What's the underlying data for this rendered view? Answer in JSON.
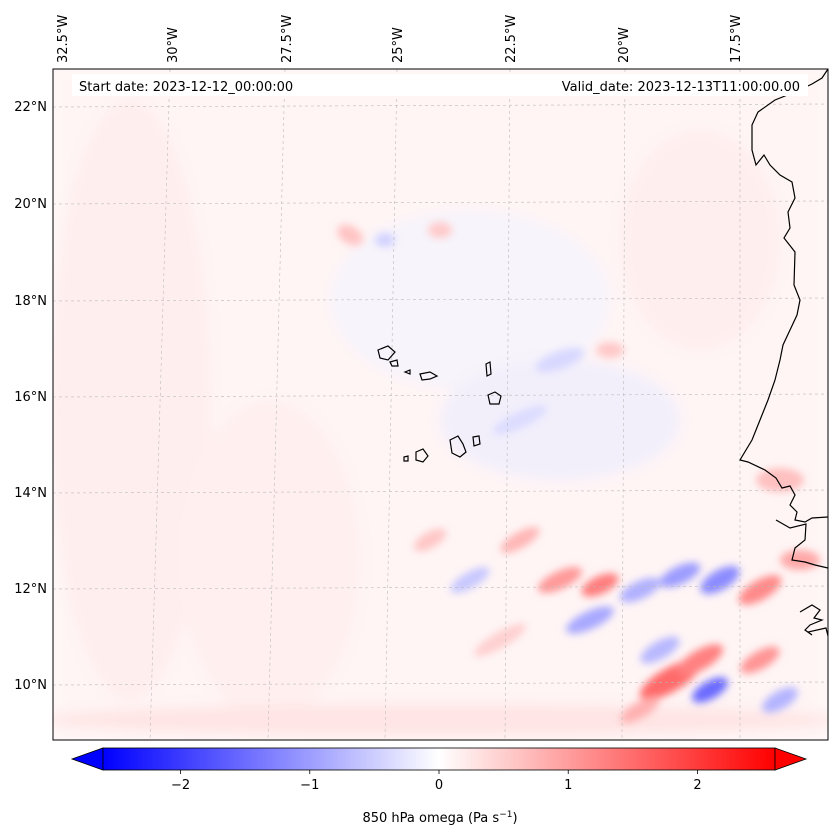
{
  "map": {
    "start_date": "Start date: 2023-12-12_00:00:00",
    "valid_date": "Valid_date: 2023-12-13T11:00:00.00",
    "lon_labels": [
      "32.5°W",
      "30°W",
      "27.5°W",
      "25°W",
      "22.5°W",
      "20°W",
      "17.5°W"
    ],
    "lat_labels": [
      "22°N",
      "20°N",
      "18°N",
      "16°N",
      "14°N",
      "12°N",
      "10°N"
    ],
    "variable": "850 hPa omega",
    "units": "Pa s",
    "units_exponent": "−1",
    "coastline_color": "#000000",
    "gridline_color": "#b0b0b0"
  },
  "colorbar": {
    "colormap": "bwr",
    "min": -2.6,
    "max": 2.6,
    "extend": "both",
    "ticks": [
      {
        "value": -2,
        "label": "−2"
      },
      {
        "value": -1,
        "label": "−1"
      },
      {
        "value": 0,
        "label": "0"
      },
      {
        "value": 1,
        "label": "1"
      },
      {
        "value": 2,
        "label": "2"
      }
    ],
    "neg_color": "#0000ff",
    "zero_color": "#ffffff",
    "pos_color": "#ff0000"
  }
}
